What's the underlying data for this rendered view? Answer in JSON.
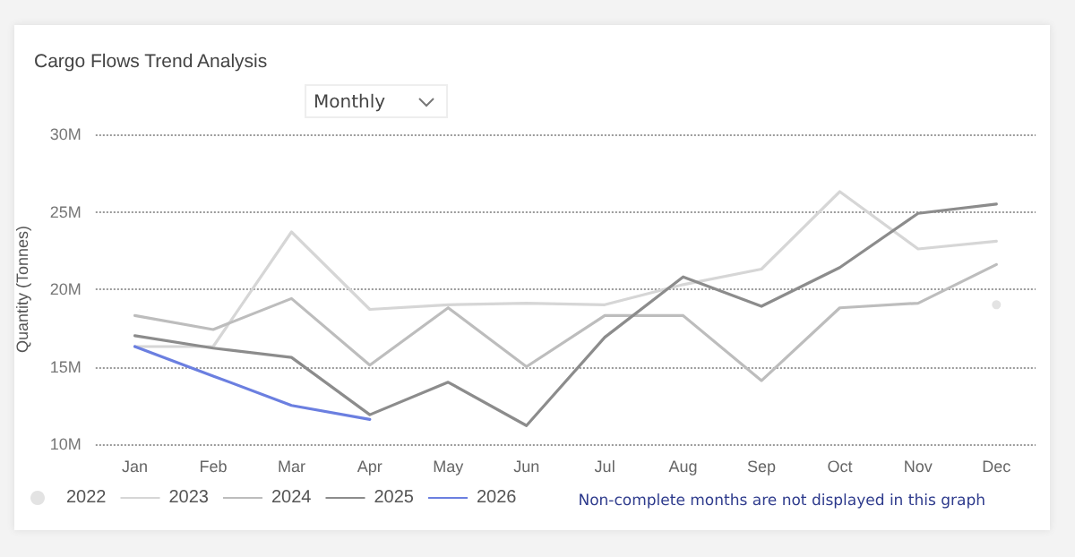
{
  "chart_data": {
    "type": "line",
    "title": "Cargo Flows Trend Analysis",
    "ylabel": "Quantity (Tonnes)",
    "categories": [
      "Jan",
      "Feb",
      "Mar",
      "Apr",
      "May",
      "Jun",
      "Jul",
      "Aug",
      "Sep",
      "Oct",
      "Nov",
      "Dec"
    ],
    "series": [
      {
        "name": "2022",
        "color": "#e3e3e3",
        "marker": "circle",
        "values": [
          null,
          null,
          null,
          null,
          null,
          null,
          null,
          null,
          null,
          null,
          null,
          19.0
        ]
      },
      {
        "name": "2023",
        "color": "#d6d6d6",
        "values": [
          16.3,
          16.3,
          23.7,
          18.7,
          19.0,
          19.1,
          19.0,
          20.3,
          21.3,
          26.3,
          22.6,
          23.1
        ]
      },
      {
        "name": "2024",
        "color": "#bdbdbd",
        "values": [
          18.3,
          17.4,
          19.4,
          15.1,
          18.8,
          15.0,
          18.3,
          18.3,
          14.1,
          18.8,
          19.1,
          21.6
        ]
      },
      {
        "name": "2025",
        "color": "#8c8c8c",
        "values": [
          17.0,
          16.2,
          15.6,
          11.9,
          14.0,
          11.2,
          16.9,
          20.8,
          18.9,
          21.4,
          24.9,
          25.5
        ]
      },
      {
        "name": "2026",
        "color": "#6b7fe0",
        "values": [
          16.3,
          14.4,
          12.5,
          11.6,
          null,
          null,
          null,
          null,
          null,
          null,
          null,
          null
        ]
      }
    ],
    "ylim": [
      10,
      30
    ],
    "yticks": [
      {
        "value": 10,
        "label": "10M"
      },
      {
        "value": 15,
        "label": "15M"
      },
      {
        "value": 20,
        "label": "20M"
      },
      {
        "value": 25,
        "label": "25M"
      },
      {
        "value": 30,
        "label": "30M"
      }
    ],
    "grid": "y",
    "legend": "bottom left",
    "marker": "none",
    "line_style": "solid",
    "annotations": [
      "Monthly",
      "Non-complete months are not displayed in this graph"
    ]
  }
}
